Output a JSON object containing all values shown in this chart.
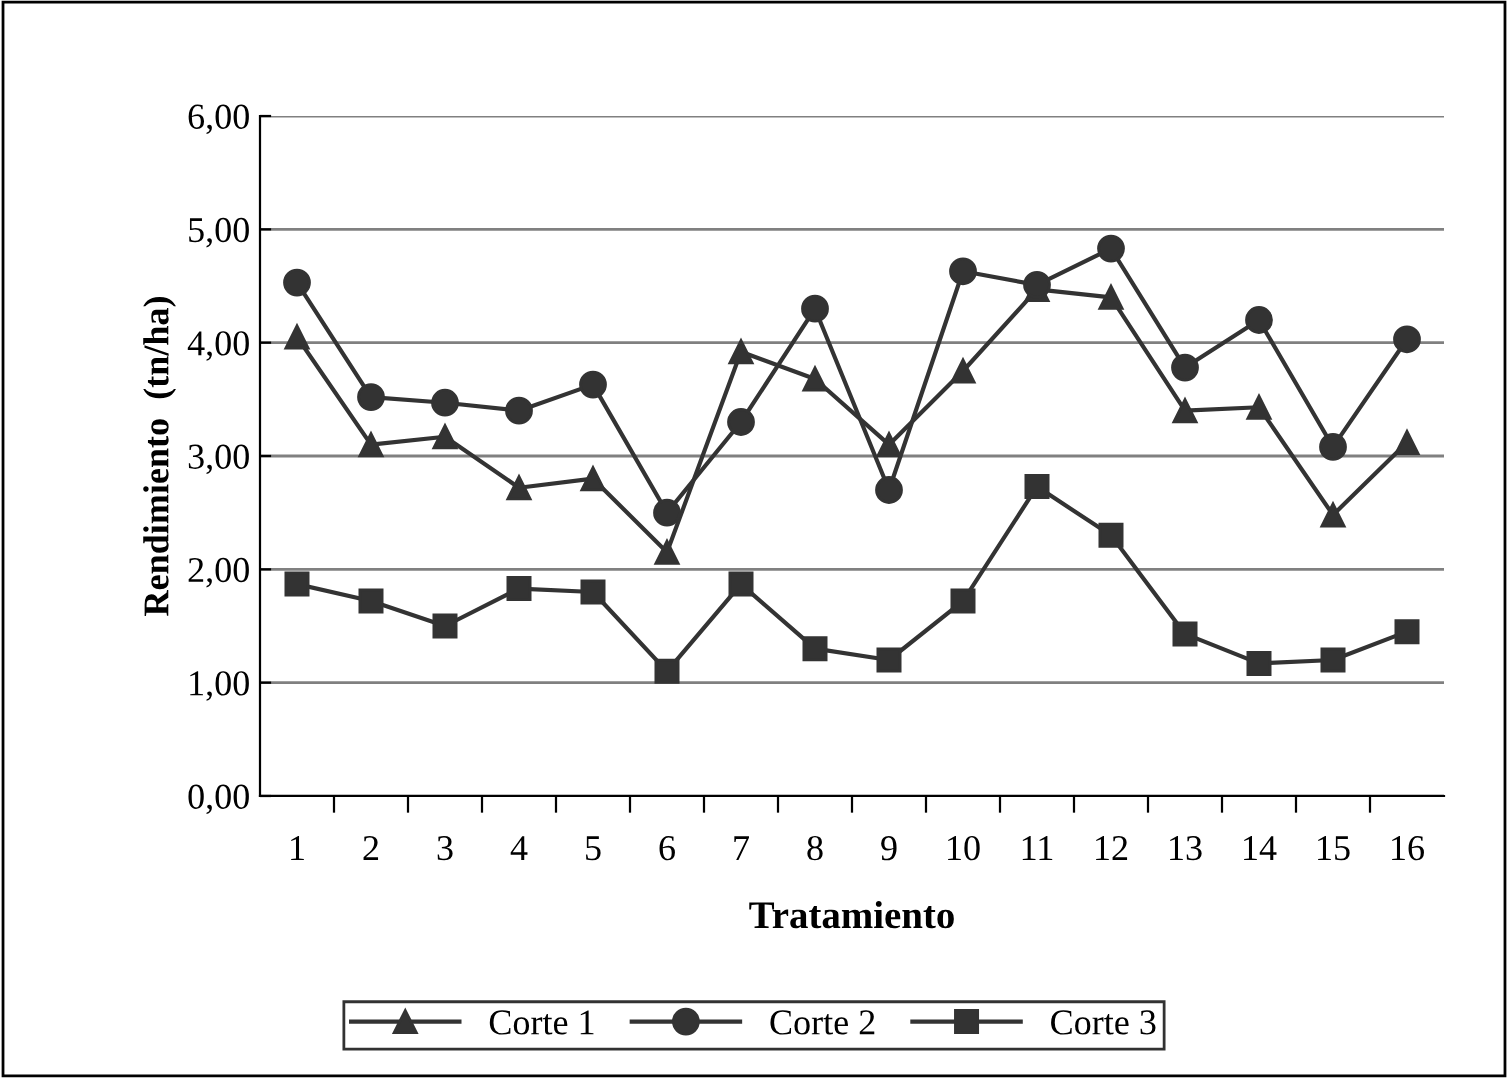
{
  "chart_data": {
    "type": "line",
    "xlabel": "Tratamiento",
    "ylabel": "Rendimiento  (tn/ha)",
    "categories": [
      "1",
      "2",
      "3",
      "4",
      "5",
      "6",
      "7",
      "8",
      "9",
      "10",
      "11",
      "12",
      "13",
      "14",
      "15",
      "16"
    ],
    "series": [
      {
        "name": "Corte 1",
        "color": "#333333",
        "marker": "triangle",
        "values": [
          4.05,
          3.1,
          3.17,
          2.72,
          2.8,
          2.15,
          3.92,
          3.68,
          3.1,
          3.75,
          4.47,
          4.4,
          3.4,
          3.43,
          2.48,
          3.12
        ]
      },
      {
        "name": "Corte 2",
        "color": "#333333",
        "marker": "circle",
        "values": [
          4.53,
          3.52,
          3.47,
          3.4,
          3.63,
          2.5,
          3.3,
          4.3,
          2.7,
          4.63,
          4.51,
          4.83,
          3.78,
          4.2,
          3.08,
          4.03
        ]
      },
      {
        "name": "Corte 3",
        "color": "#333333",
        "marker": "square",
        "values": [
          1.87,
          1.72,
          1.5,
          1.83,
          1.8,
          1.1,
          1.87,
          1.3,
          1.2,
          1.72,
          2.73,
          2.3,
          1.43,
          1.17,
          1.2,
          1.45
        ]
      }
    ],
    "ylim": [
      0,
      6
    ],
    "yticks": [
      {
        "value": 0,
        "label": "0,00"
      },
      {
        "value": 1,
        "label": "1,00"
      },
      {
        "value": 2,
        "label": "2,00"
      },
      {
        "value": 3,
        "label": "3,00"
      },
      {
        "value": 4,
        "label": "4,00"
      },
      {
        "value": 5,
        "label": "5,00"
      },
      {
        "value": 6,
        "label": "6,00"
      }
    ],
    "grid": "y",
    "legend": "bottom",
    "line_style": "solid"
  }
}
